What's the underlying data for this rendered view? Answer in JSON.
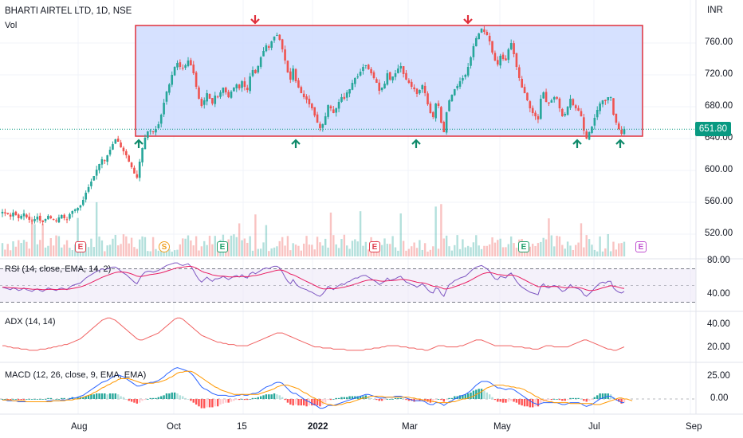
{
  "header": {
    "title": "BHARTI AIRTEL LTD, 1D, NSE",
    "vol_label": "Vol"
  },
  "price_axis": {
    "currency": "INR",
    "ticks": [
      "760.00",
      "720.00",
      "680.00",
      "640.00",
      "600.00",
      "560.00",
      "520.00"
    ],
    "last_price": "651.80"
  },
  "rsi_axis": {
    "ticks": [
      "80.00",
      "40.00"
    ]
  },
  "adx_axis": {
    "ticks": [
      "40.00",
      "20.00"
    ]
  },
  "macd_axis": {
    "ticks": [
      "25.00",
      "0.00"
    ]
  },
  "panes": {
    "rsi_label": "RSI (14, close, EMA, 14, 2)",
    "adx_label": "ADX (14, 14)",
    "macd_label": "MACD (12, 26, close, 9, EMA, EMA)"
  },
  "time_axis": {
    "labels": [
      "Aug",
      "Oct",
      "15",
      "2022",
      "Mar",
      "May",
      "Jul",
      "Sep"
    ]
  },
  "events": [
    {
      "letter": "E",
      "kind": "earnings-red"
    },
    {
      "letter": "S",
      "kind": "split"
    },
    {
      "letter": "E",
      "kind": "earnings-green"
    },
    {
      "letter": "E",
      "kind": "earnings-red"
    },
    {
      "letter": "E",
      "kind": "earnings-green"
    },
    {
      "letter": "E",
      "kind": "earnings-upcoming"
    }
  ],
  "colors": {
    "up": "#26a69a",
    "down": "#ef5350",
    "range_box_fill": "#cfdcff",
    "range_box_stroke": "#e0303c",
    "rsi_line": "#7e57c2",
    "rsi_ma": "#e91e63",
    "adx_line": "#f06060",
    "macd_line": "#2962ff",
    "signal_line": "#ff9800",
    "last_price": "#089981"
  },
  "chart_data": {
    "type": "candlestick",
    "title": "BHARTI AIRTEL LTD, 1D, NSE",
    "ylabel": "INR",
    "ylim": [
      490,
      790
    ],
    "last_price": 651.8,
    "range_box": {
      "low": 643,
      "high": 782
    },
    "close": [
      548,
      546,
      545,
      542,
      547,
      544,
      540,
      543,
      546,
      541,
      538,
      536,
      539,
      542,
      537,
      535,
      539,
      543,
      540,
      538,
      536,
      541,
      544,
      540,
      538,
      545,
      549,
      551,
      553,
      556,
      563,
      572,
      579,
      586,
      593,
      601,
      608,
      614,
      612,
      619,
      626,
      633,
      639,
      636,
      629,
      624,
      619,
      611,
      604,
      596,
      591,
      611,
      628,
      641,
      649,
      650,
      648,
      652,
      658,
      670,
      685,
      699,
      708,
      720,
      730,
      735,
      730,
      728,
      732,
      738,
      732,
      722,
      705,
      690,
      681,
      688,
      697,
      690,
      684,
      694,
      692,
      698,
      704,
      698,
      692,
      699,
      704,
      708,
      703,
      712,
      705,
      701,
      718,
      726,
      722,
      731,
      742,
      750,
      757,
      754,
      762,
      768,
      770,
      764,
      752,
      738,
      723,
      714,
      728,
      712,
      704,
      697,
      692,
      689,
      683,
      678,
      669,
      660,
      653,
      658,
      668,
      682,
      678,
      672,
      678,
      686,
      692,
      690,
      698,
      702,
      710,
      716,
      718,
      724,
      730,
      732,
      727,
      722,
      716,
      710,
      700,
      704,
      709,
      722,
      714,
      718,
      722,
      728,
      731,
      721,
      714,
      710,
      705,
      702,
      696,
      701,
      707,
      697,
      683,
      672,
      667,
      684,
      681,
      660,
      648,
      673,
      688,
      695,
      702,
      706,
      712,
      716,
      720,
      730,
      742,
      756,
      766,
      772,
      778,
      774,
      770,
      762,
      748,
      738,
      733,
      744,
      740,
      738,
      752,
      760,
      746,
      730,
      716,
      704,
      697,
      688,
      678,
      672,
      668,
      664,
      690,
      698,
      686,
      684,
      688,
      692,
      690,
      678,
      668,
      671,
      680,
      690,
      682,
      678,
      675,
      668,
      650,
      640,
      648,
      655,
      666,
      676,
      684,
      688,
      687,
      692,
      692,
      670,
      660,
      652,
      646,
      651.8
    ],
    "rsi": [
      48,
      47,
      46,
      45,
      47,
      46,
      44,
      45,
      47,
      45,
      44,
      43,
      45,
      46,
      44,
      43,
      45,
      47,
      46,
      45,
      44,
      46,
      47,
      46,
      45,
      48,
      50,
      51,
      52,
      53,
      56,
      59,
      61,
      63,
      65,
      67,
      68,
      70,
      69,
      70,
      71,
      72,
      72,
      70,
      67,
      65,
      63,
      60,
      57,
      54,
      52,
      58,
      63,
      66,
      67,
      67,
      66,
      67,
      68,
      70,
      72,
      74,
      75,
      76,
      77,
      77,
      75,
      74,
      75,
      76,
      73,
      68,
      62,
      57,
      54,
      57,
      60,
      57,
      55,
      58,
      58,
      59,
      61,
      59,
      57,
      59,
      61,
      62,
      60,
      63,
      60,
      59,
      64,
      66,
      64,
      66,
      68,
      70,
      71,
      70,
      72,
      73,
      73,
      71,
      66,
      60,
      55,
      52,
      57,
      52,
      49,
      47,
      46,
      45,
      43,
      42,
      40,
      38,
      37,
      40,
      44,
      49,
      47,
      45,
      48,
      50,
      52,
      51,
      54,
      55,
      57,
      59,
      59,
      61,
      62,
      62,
      60,
      58,
      56,
      54,
      51,
      53,
      55,
      59,
      56,
      57,
      58,
      60,
      61,
      57,
      54,
      53,
      51,
      50,
      48,
      50,
      52,
      49,
      45,
      42,
      41,
      47,
      46,
      40,
      37,
      45,
      51,
      53,
      56,
      57,
      59,
      60,
      61,
      64,
      67,
      70,
      72,
      73,
      74,
      72,
      70,
      67,
      62,
      58,
      57,
      61,
      60,
      59,
      63,
      65,
      60,
      55,
      51,
      48,
      46,
      44,
      42,
      41,
      40,
      39,
      49,
      52,
      48,
      47,
      49,
      50,
      49,
      46,
      43,
      44,
      47,
      51,
      48,
      47,
      46,
      44,
      39,
      37,
      40,
      43,
      47,
      50,
      53,
      54,
      53,
      55,
      55,
      47,
      44,
      42,
      41,
      43
    ],
    "adx": [
      22,
      22,
      21,
      21,
      20,
      20,
      20,
      19,
      19,
      19,
      18,
      18,
      18,
      18,
      19,
      19,
      19,
      20,
      20,
      21,
      21,
      22,
      22,
      23,
      23,
      24,
      25,
      26,
      27,
      28,
      30,
      32,
      34,
      36,
      38,
      40,
      42,
      44,
      45,
      46,
      46,
      45,
      44,
      42,
      40,
      38,
      36,
      34,
      32,
      30,
      28,
      27,
      27,
      28,
      29,
      30,
      31,
      32,
      33,
      35,
      37,
      39,
      41,
      43,
      45,
      46,
      46,
      45,
      43,
      41,
      39,
      37,
      35,
      33,
      31,
      30,
      29,
      28,
      27,
      26,
      25,
      25,
      24,
      24,
      23,
      23,
      23,
      22,
      22,
      22,
      22,
      22,
      23,
      24,
      25,
      26,
      27,
      28,
      29,
      30,
      31,
      32,
      33,
      33,
      33,
      32,
      31,
      30,
      29,
      28,
      27,
      26,
      25,
      24,
      23,
      22,
      21,
      21,
      21,
      20,
      20,
      20,
      20,
      19,
      19,
      19,
      19,
      19,
      18,
      18,
      18,
      18,
      18,
      18,
      18,
      19,
      19,
      19,
      20,
      20,
      20,
      21,
      21,
      22,
      22,
      22,
      22,
      22,
      21,
      21,
      21,
      20,
      20,
      20,
      19,
      19,
      19,
      18,
      18,
      19,
      20,
      21,
      22,
      22,
      22,
      21,
      21,
      21,
      21,
      21,
      22,
      22,
      23,
      24,
      25,
      26,
      27,
      27,
      27,
      26,
      25,
      24,
      23,
      22,
      22,
      22,
      22,
      22,
      22,
      22,
      21,
      21,
      21,
      21,
      20,
      20,
      20,
      19,
      19,
      19,
      20,
      21,
      22,
      22,
      22,
      21,
      21,
      21,
      21,
      21,
      21,
      22,
      23,
      24,
      25,
      26,
      27,
      27,
      26,
      25,
      24,
      23,
      22,
      21,
      20,
      19,
      19,
      18,
      18,
      19,
      20,
      21
    ],
    "macd": [
      -1,
      -1,
      -2,
      -2,
      -2,
      -2,
      -3,
      -3,
      -3,
      -3,
      -3,
      -3,
      -3,
      -3,
      -3,
      -3,
      -3,
      -2,
      -2,
      -2,
      -2,
      -2,
      -1,
      -1,
      -1,
      0,
      1,
      1,
      2,
      3,
      4,
      6,
      8,
      10,
      12,
      14,
      16,
      18,
      19,
      20,
      22,
      24,
      25,
      26,
      25,
      24,
      22,
      20,
      18,
      16,
      14,
      14,
      15,
      16,
      17,
      18,
      18,
      19,
      20,
      22,
      24,
      27,
      29,
      31,
      33,
      34,
      33,
      32,
      31,
      30,
      28,
      25,
      21,
      17,
      13,
      11,
      10,
      8,
      6,
      5,
      4,
      4,
      4,
      4,
      3,
      3,
      3,
      4,
      4,
      5,
      4,
      4,
      5,
      6,
      6,
      7,
      9,
      11,
      13,
      14,
      15,
      17,
      18,
      18,
      17,
      14,
      11,
      8,
      6,
      6,
      4,
      2,
      0,
      -2,
      -3,
      -5,
      -6,
      -8,
      -10,
      -10,
      -9,
      -7,
      -7,
      -7,
      -6,
      -5,
      -4,
      -3,
      -2,
      -1,
      0,
      1,
      2,
      3,
      4,
      5,
      5,
      4,
      3,
      2,
      1,
      1,
      1,
      2,
      2,
      2,
      3,
      3,
      3,
      2,
      1,
      0,
      -1,
      -2,
      -2,
      -2,
      -2,
      -3,
      -5,
      -6,
      -6,
      -4,
      -4,
      -5,
      -7,
      -5,
      -3,
      -2,
      0,
      1,
      3,
      4,
      5,
      7,
      9,
      12,
      15,
      17,
      19,
      19,
      19,
      18,
      16,
      14,
      12,
      12,
      11,
      10,
      11,
      11,
      10,
      8,
      6,
      4,
      2,
      0,
      -2,
      -4,
      -5,
      -6,
      -5,
      -4,
      -4,
      -4,
      -4,
      -4,
      -4,
      -5,
      -6,
      -6,
      -5,
      -4,
      -4,
      -4,
      -4,
      -5,
      -7,
      -8,
      -7,
      -6,
      -4,
      -2,
      0,
      1,
      2,
      3,
      3,
      1,
      -1,
      -2,
      -4,
      -4
    ],
    "signal": [
      -1,
      -1,
      -1,
      -1,
      -2,
      -2,
      -2,
      -2,
      -2,
      -3,
      -3,
      -3,
      -3,
      -3,
      -3,
      -3,
      -3,
      -3,
      -3,
      -2,
      -2,
      -2,
      -2,
      -2,
      -1,
      -1,
      -1,
      0,
      0,
      1,
      2,
      3,
      4,
      5,
      7,
      8,
      10,
      12,
      13,
      15,
      16,
      18,
      19,
      21,
      22,
      22,
      22,
      22,
      21,
      20,
      19,
      18,
      17,
      17,
      17,
      17,
      17,
      18,
      18,
      19,
      20,
      21,
      23,
      24,
      26,
      28,
      29,
      29,
      30,
      30,
      30,
      29,
      27,
      25,
      23,
      21,
      19,
      17,
      15,
      13,
      12,
      10,
      9,
      8,
      7,
      6,
      5,
      5,
      5,
      5,
      5,
      5,
      5,
      5,
      5,
      5,
      6,
      7,
      8,
      9,
      10,
      11,
      13,
      14,
      15,
      15,
      15,
      14,
      13,
      12,
      11,
      9,
      7,
      6,
      4,
      2,
      1,
      -1,
      -2,
      -4,
      -5,
      -6,
      -6,
      -7,
      -7,
      -6,
      -6,
      -5,
      -4,
      -4,
      -3,
      -2,
      -1,
      0,
      1,
      1,
      2,
      3,
      3,
      3,
      3,
      3,
      2,
      2,
      2,
      2,
      2,
      2,
      2,
      2,
      2,
      2,
      1,
      1,
      0,
      0,
      -1,
      -1,
      -2,
      -2,
      -3,
      -3,
      -4,
      -4,
      -4,
      -4,
      -4,
      -3,
      -3,
      -2,
      -1,
      0,
      0,
      1,
      2,
      3,
      5,
      6,
      8,
      10,
      12,
      13,
      14,
      15,
      15,
      15,
      15,
      14,
      14,
      13,
      13,
      12,
      12,
      11,
      10,
      8,
      7,
      5,
      3,
      2,
      0,
      -1,
      -2,
      -3,
      -3,
      -4,
      -4,
      -4,
      -4,
      -4,
      -4,
      -5,
      -5,
      -5,
      -5,
      -5,
      -5,
      -5,
      -5,
      -5,
      -6,
      -6,
      -6,
      -5,
      -4,
      -3,
      -2,
      -1,
      0,
      1,
      1,
      0,
      0,
      -1,
      -2
    ]
  }
}
